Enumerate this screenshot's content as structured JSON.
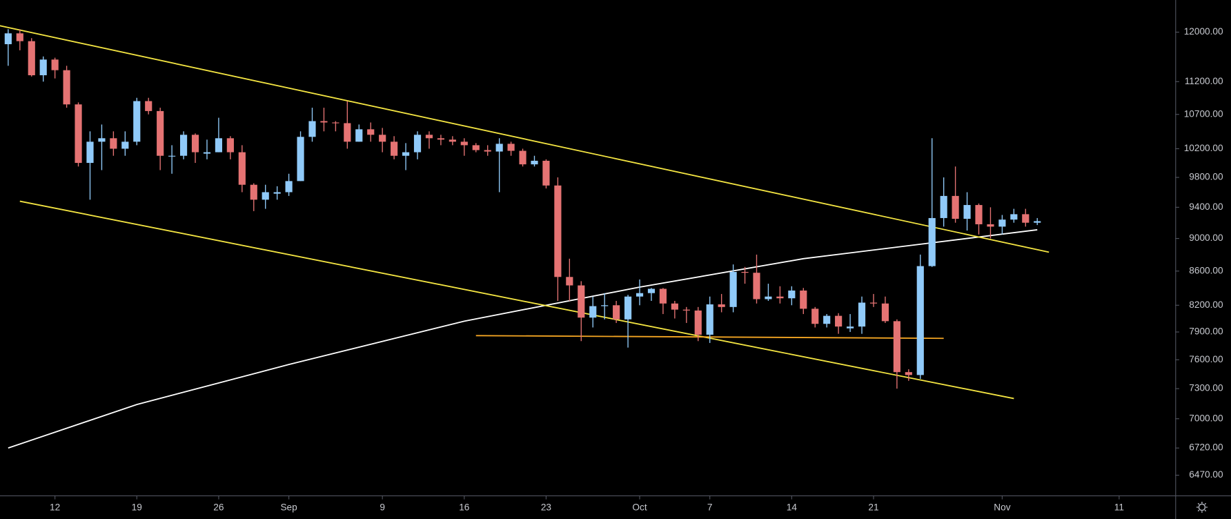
{
  "chart_data": {
    "type": "candlestick",
    "x": [
      0,
      1,
      2,
      3,
      4,
      5,
      6,
      7,
      8,
      9,
      10,
      11,
      12,
      13,
      14,
      15,
      16,
      17,
      18,
      19,
      20,
      21,
      22,
      23,
      24,
      25,
      26,
      27,
      28,
      29,
      30,
      31,
      32,
      33,
      34,
      35,
      36,
      37,
      38,
      39,
      40,
      41,
      42,
      43,
      44,
      45,
      46,
      47,
      48,
      49,
      50,
      51,
      52,
      53,
      54,
      55,
      56,
      57,
      58,
      59,
      60,
      61,
      62,
      63,
      64,
      65,
      66,
      67,
      68,
      69,
      70,
      71,
      72,
      73,
      74,
      75,
      76,
      77,
      78,
      79,
      80,
      81,
      82,
      83,
      84,
      85,
      86,
      87,
      88
    ],
    "open": [
      11800,
      11980,
      11850,
      11300,
      11550,
      11380,
      10850,
      10000,
      10300,
      10350,
      10200,
      10300,
      10900,
      10750,
      10100,
      10100,
      10400,
      10130,
      10150,
      10350,
      10150,
      9700,
      9500,
      9580,
      9600,
      9750,
      10370,
      10600,
      10580,
      10570,
      10300,
      10480,
      10400,
      10300,
      10100,
      10150,
      10400,
      10350,
      10330,
      10300,
      10250,
      10180,
      10160,
      10270,
      10170,
      9980,
      10030,
      9690,
      8530,
      8430,
      8060,
      8190,
      8200,
      8040,
      8300,
      8340,
      8390,
      8220,
      8150,
      8140,
      7870,
      8210,
      8180,
      8590,
      8580,
      8270,
      8300,
      8280,
      8370,
      8160,
      7990,
      8080,
      7940,
      7960,
      8230,
      8220,
      8020,
      7470,
      7440,
      8660,
      9260,
      9550,
      9250,
      9430,
      9180,
      9150,
      9240,
      9310,
      9200
    ],
    "high": [
      12050,
      12050,
      11900,
      11600,
      11580,
      11450,
      10880,
      10450,
      10550,
      10450,
      10450,
      10950,
      10950,
      10800,
      10250,
      10450,
      10420,
      10330,
      10650,
      10380,
      10250,
      9720,
      9700,
      9680,
      9850,
      10450,
      10800,
      10800,
      10600,
      10900,
      10550,
      10580,
      10500,
      10380,
      10280,
      10450,
      10450,
      10400,
      10380,
      10350,
      10280,
      10250,
      10350,
      10300,
      10200,
      10100,
      10050,
      9800,
      8750,
      8480,
      8300,
      8340,
      8250,
      8320,
      8500,
      8400,
      8400,
      8250,
      8180,
      8180,
      8300,
      8330,
      8680,
      8650,
      8800,
      8450,
      8420,
      8420,
      8400,
      8180,
      8100,
      8110,
      8100,
      8300,
      8330,
      8300,
      8040,
      7500,
      8800,
      10350,
      9800,
      9950,
      9600,
      9450,
      9400,
      9300,
      9380,
      9380,
      9260
    ],
    "low": [
      11450,
      11700,
      11280,
      11200,
      11250,
      10800,
      9950,
      9500,
      9900,
      10100,
      10100,
      10250,
      10700,
      9900,
      9850,
      10050,
      10000,
      10050,
      10150,
      10050,
      9600,
      9350,
      9380,
      9500,
      9550,
      9750,
      10300,
      10450,
      10450,
      10200,
      10300,
      10300,
      10150,
      10050,
      9900,
      10050,
      10200,
      10250,
      10250,
      10100,
      10150,
      10100,
      9600,
      10100,
      9950,
      9950,
      9650,
      8250,
      8250,
      7800,
      7950,
      8040,
      8000,
      7730,
      8200,
      8250,
      8100,
      8050,
      8000,
      7800,
      7780,
      8120,
      8120,
      8450,
      8220,
      8250,
      8220,
      8200,
      8100,
      7950,
      7950,
      7880,
      7900,
      7880,
      8180,
      8000,
      7300,
      7380,
      7400,
      8650,
      9150,
      9200,
      9100,
      9050,
      9000,
      9050,
      9200,
      9150,
      9170
    ],
    "close": [
      11980,
      11850,
      11300,
      11550,
      11380,
      10850,
      10000,
      10300,
      10350,
      10200,
      10300,
      10900,
      10750,
      10100,
      10100,
      10400,
      10150,
      10150,
      10350,
      10150,
      9700,
      9500,
      9600,
      9600,
      9750,
      10370,
      10600,
      10580,
      10570,
      10300,
      10480,
      10400,
      10300,
      10100,
      10150,
      10400,
      10350,
      10330,
      10300,
      10250,
      10180,
      10160,
      10270,
      10170,
      9980,
      10030,
      9690,
      8530,
      8430,
      8060,
      8190,
      8200,
      8040,
      8300,
      8340,
      8390,
      8220,
      8150,
      8140,
      7870,
      8210,
      8180,
      8590,
      8580,
      8270,
      8300,
      8280,
      8370,
      8160,
      7990,
      8080,
      7960,
      7960,
      8230,
      8220,
      8020,
      7470,
      7440,
      8660,
      9260,
      9550,
      9250,
      9430,
      9180,
      9150,
      9240,
      9310,
      9200,
      9220
    ],
    "up_color": "#90caf9",
    "down_color": "#e57373",
    "moving_average": {
      "color": "#ffffff",
      "x": [
        0,
        11,
        24,
        39,
        54,
        68,
        88
      ],
      "values": [
        6720,
        7140,
        7550,
        8020,
        8410,
        8750,
        9110
      ]
    },
    "trendlines": [
      {
        "color": "#f4e542",
        "x": [
          -1,
          89
        ],
        "y": [
          12120,
          8830
        ]
      },
      {
        "color": "#f4e542",
        "x": [
          1,
          86
        ],
        "y": [
          9480,
          7200
        ]
      },
      {
        "color": "#f5a623",
        "x": [
          40,
          80
        ],
        "y": [
          7860,
          7830
        ]
      }
    ],
    "xlim": [
      -0.7,
      99.8
    ],
    "xticks": [
      {
        "value": 4,
        "label": "12"
      },
      {
        "value": 11,
        "label": "19"
      },
      {
        "value": 18,
        "label": "26"
      },
      {
        "value": 24,
        "label": "Sep"
      },
      {
        "value": 32,
        "label": "9"
      },
      {
        "value": 39,
        "label": "16"
      },
      {
        "value": 46,
        "label": "23"
      },
      {
        "value": 54,
        "label": "Oct"
      },
      {
        "value": 60,
        "label": "7"
      },
      {
        "value": 67,
        "label": "14"
      },
      {
        "value": 74,
        "label": "21"
      },
      {
        "value": 85,
        "label": "Nov"
      },
      {
        "value": 95,
        "label": "11"
      }
    ],
    "ylim": [
      6290,
      12550
    ],
    "log_scale": true,
    "yticks": [
      {
        "value": 12000,
        "label": "12000.00"
      },
      {
        "value": 11200,
        "label": "11200.00"
      },
      {
        "value": 10700,
        "label": "10700.00"
      },
      {
        "value": 10200,
        "label": "10200.00"
      },
      {
        "value": 9800,
        "label": "9800.00"
      },
      {
        "value": 9400,
        "label": "9400.00"
      },
      {
        "value": 9000,
        "label": "9000.00"
      },
      {
        "value": 8600,
        "label": "8600.00"
      },
      {
        "value": 8200,
        "label": "8200.00"
      },
      {
        "value": 7900,
        "label": "7900.00"
      },
      {
        "value": 7600,
        "label": "7600.00"
      },
      {
        "value": 7300,
        "label": "7300.00"
      },
      {
        "value": 7000,
        "label": "7000.00"
      },
      {
        "value": 6720,
        "label": "6720.00"
      },
      {
        "value": 6470,
        "label": "6470.00"
      }
    ]
  }
}
